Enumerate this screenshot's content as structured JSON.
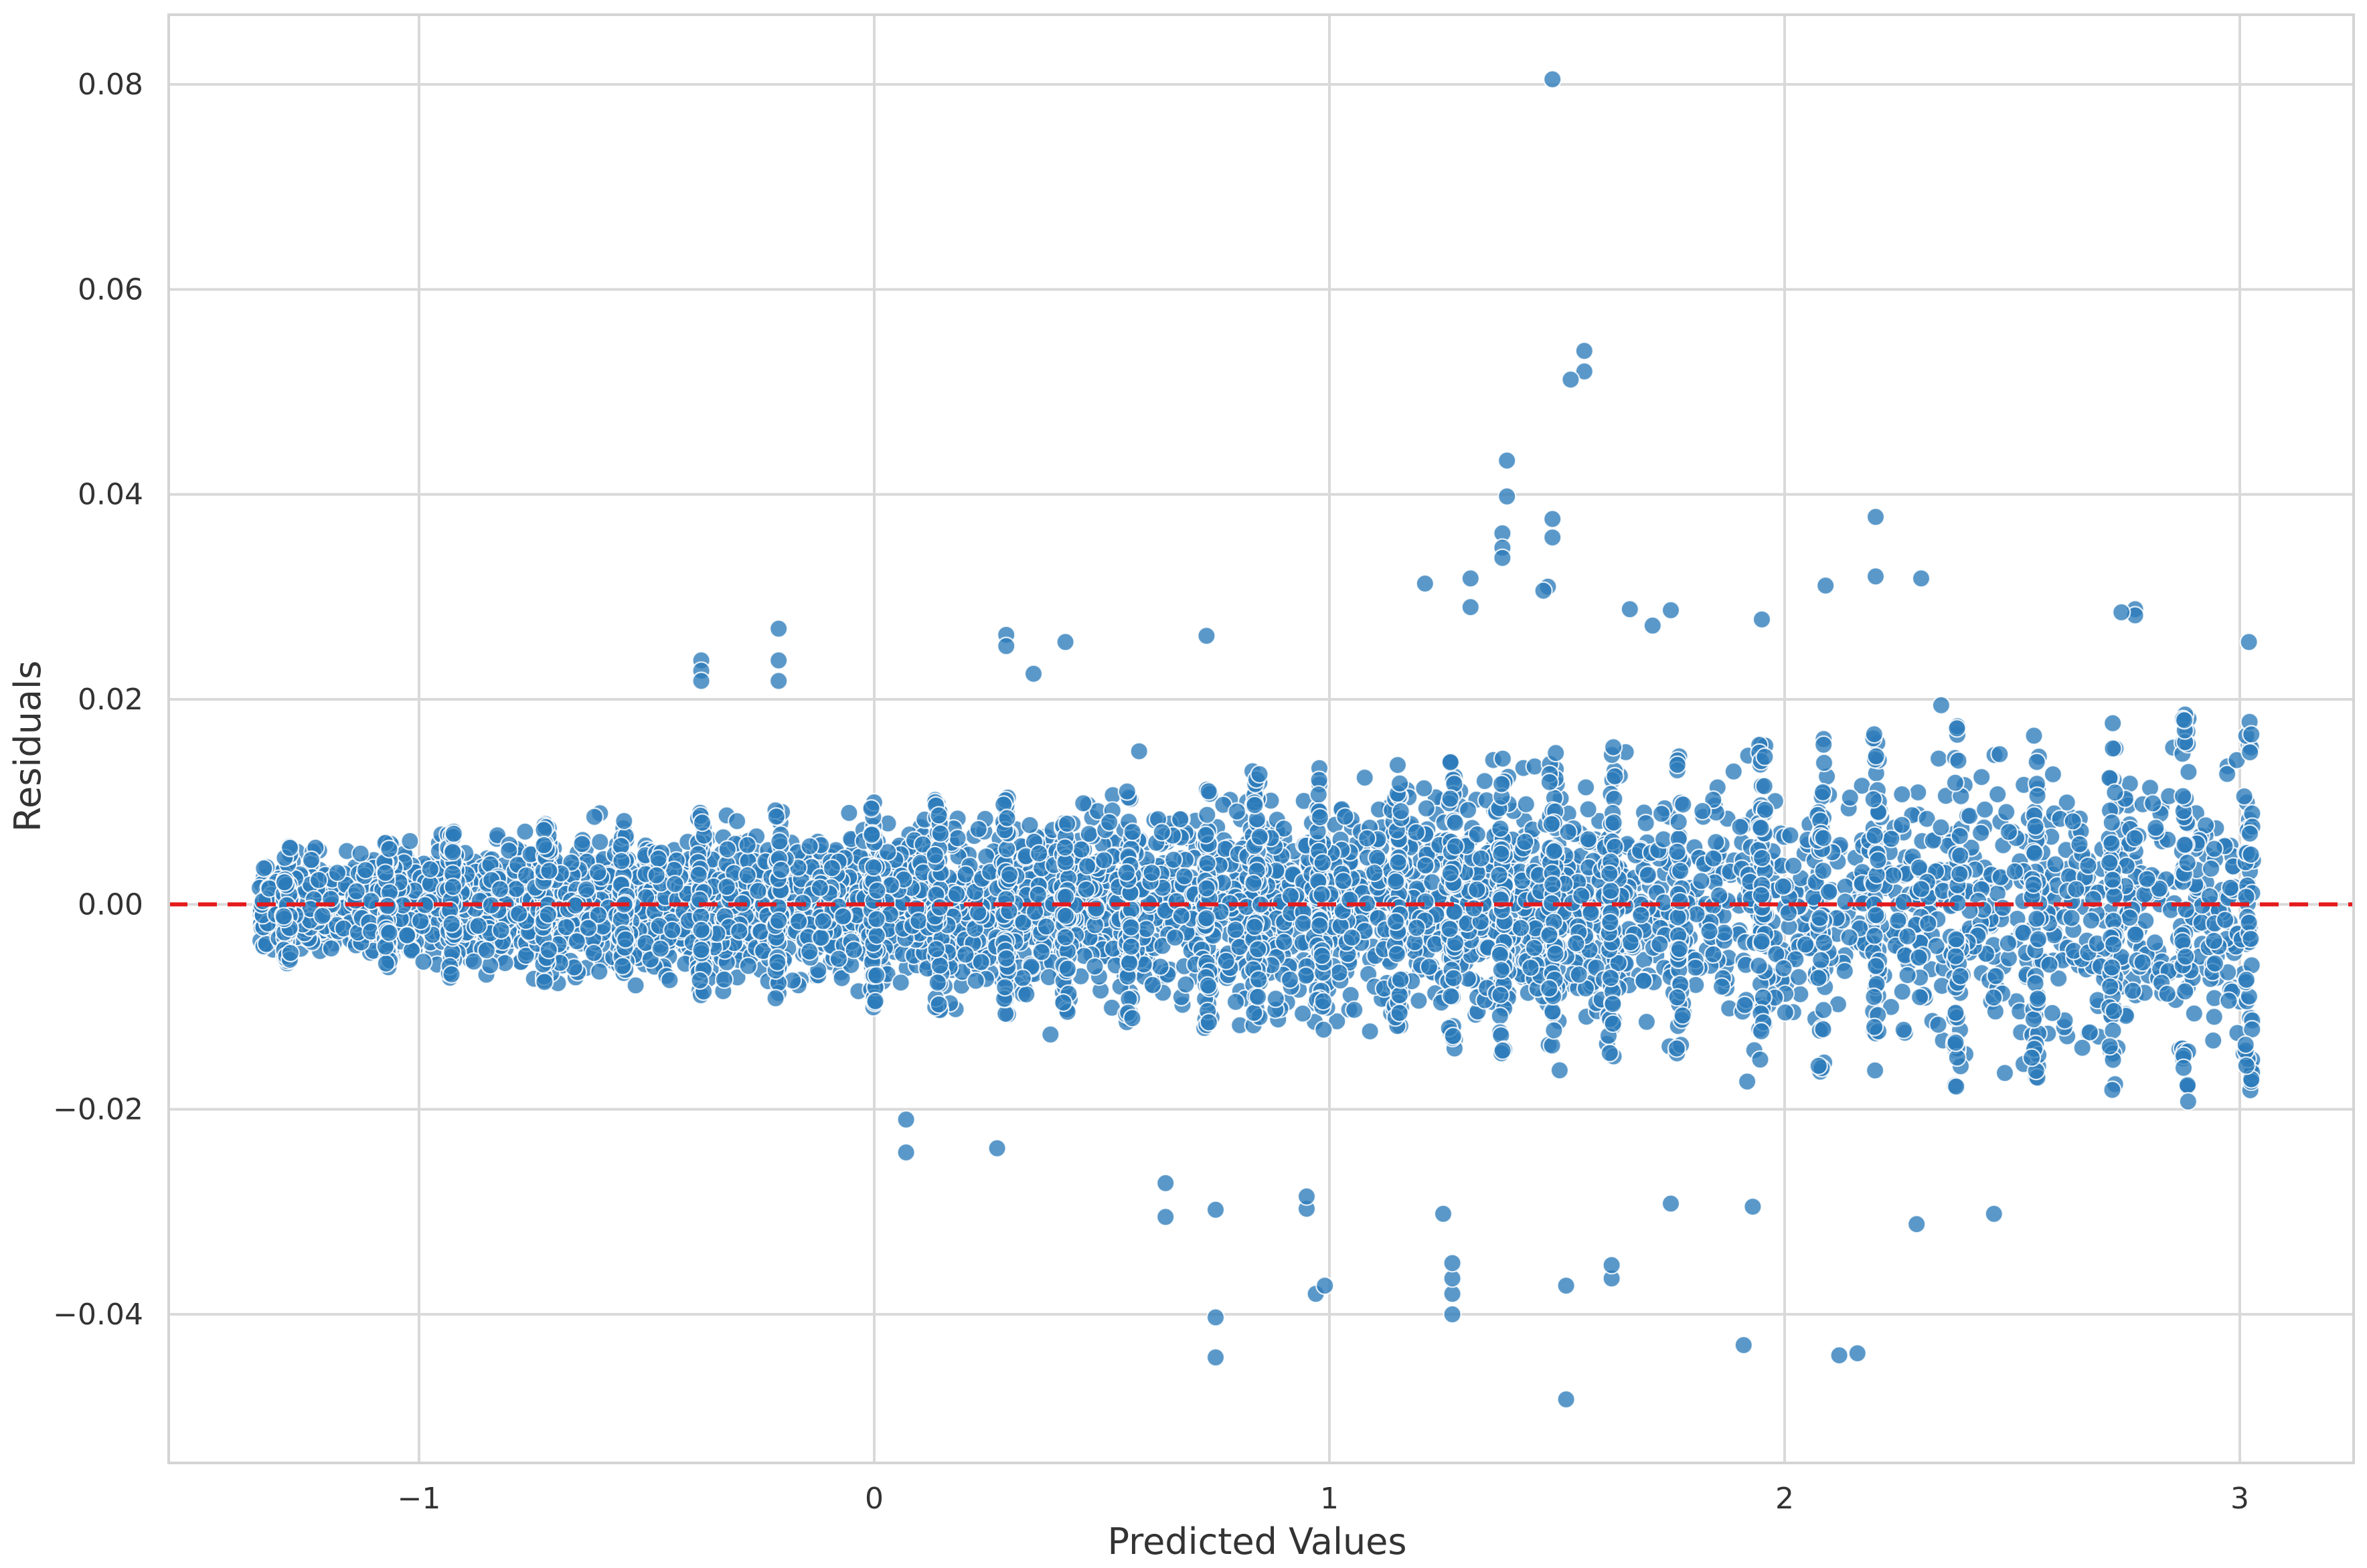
{
  "chart_data": {
    "type": "scatter",
    "title": "",
    "xlabel": "Predicted Values",
    "ylabel": "Residuals",
    "xlim": [
      -1.55,
      3.25
    ],
    "ylim": [
      -0.0545,
      0.0868
    ],
    "xticks": [
      -1,
      0,
      1,
      2,
      3
    ],
    "xtick_labels": [
      "−1",
      "0",
      "1",
      "2",
      "3"
    ],
    "yticks": [
      -0.04,
      -0.02,
      0.0,
      0.02,
      0.04,
      0.06,
      0.08
    ],
    "ytick_labels": [
      "−0.04",
      "−0.02",
      "0.00",
      "0.02",
      "0.04",
      "0.06",
      "0.08"
    ],
    "grid": true,
    "reference_line": {
      "y": 0.0,
      "style": "dashed",
      "color": "#e41a1c"
    },
    "colors": {
      "points": "#2b7bba",
      "point_edge": "#ffffff"
    },
    "series": [
      {
        "points": [
          [
            1.49,
            0.0805
          ],
          [
            1.56,
            0.054
          ],
          [
            1.56,
            0.052
          ],
          [
            1.53,
            0.0512
          ],
          [
            1.39,
            0.0433
          ],
          [
            1.39,
            0.0398
          ],
          [
            1.38,
            0.0362
          ],
          [
            1.38,
            0.0348
          ],
          [
            1.38,
            0.0338
          ],
          [
            1.49,
            0.0376
          ],
          [
            1.49,
            0.0358
          ],
          [
            1.48,
            0.031
          ],
          [
            1.47,
            0.0306
          ],
          [
            1.21,
            0.0313
          ],
          [
            1.31,
            0.0318
          ],
          [
            1.31,
            0.029
          ],
          [
            2.2,
            0.0378
          ],
          [
            2.2,
            0.032
          ],
          [
            2.3,
            0.0318
          ],
          [
            2.09,
            0.0311
          ],
          [
            2.77,
            0.0288
          ],
          [
            2.77,
            0.0282
          ],
          [
            2.74,
            0.0285
          ],
          [
            3.02,
            0.0256
          ],
          [
            0.73,
            0.0262
          ],
          [
            0.29,
            0.0263
          ],
          [
            0.29,
            0.0252
          ],
          [
            0.35,
            0.0225
          ],
          [
            0.42,
            0.0256
          ],
          [
            -0.21,
            0.0269
          ],
          [
            -0.21,
            0.0238
          ],
          [
            -0.21,
            0.0218
          ],
          [
            -0.38,
            0.0238
          ],
          [
            -0.38,
            0.0228
          ],
          [
            -0.38,
            0.0218
          ],
          [
            1.66,
            0.0288
          ],
          [
            1.75,
            0.0287
          ],
          [
            1.95,
            0.0278
          ],
          [
            1.71,
            0.0272
          ],
          [
            0.75,
            -0.0403
          ],
          [
            0.75,
            -0.0442
          ],
          [
            0.97,
            -0.038
          ],
          [
            0.99,
            -0.0372
          ],
          [
            1.27,
            -0.04
          ],
          [
            1.27,
            -0.038
          ],
          [
            1.27,
            -0.0365
          ],
          [
            1.27,
            -0.035
          ],
          [
            1.52,
            -0.0372
          ],
          [
            1.52,
            -0.0483
          ],
          [
            1.91,
            -0.043
          ],
          [
            2.12,
            -0.044
          ],
          [
            2.16,
            -0.0438
          ],
          [
            1.62,
            -0.0365
          ],
          [
            1.62,
            -0.0352
          ],
          [
            0.64,
            -0.0305
          ],
          [
            0.64,
            -0.0272
          ],
          [
            0.95,
            -0.0297
          ],
          [
            0.95,
            -0.0285
          ],
          [
            0.75,
            -0.0298
          ],
          [
            1.25,
            -0.0302
          ],
          [
            1.93,
            -0.0295
          ],
          [
            2.46,
            -0.0302
          ],
          [
            2.29,
            -0.0312
          ],
          [
            1.75,
            -0.0292
          ],
          [
            0.07,
            -0.0242
          ],
          [
            0.07,
            -0.021
          ],
          [
            0.27,
            -0.0238
          ]
        ]
      }
    ]
  }
}
